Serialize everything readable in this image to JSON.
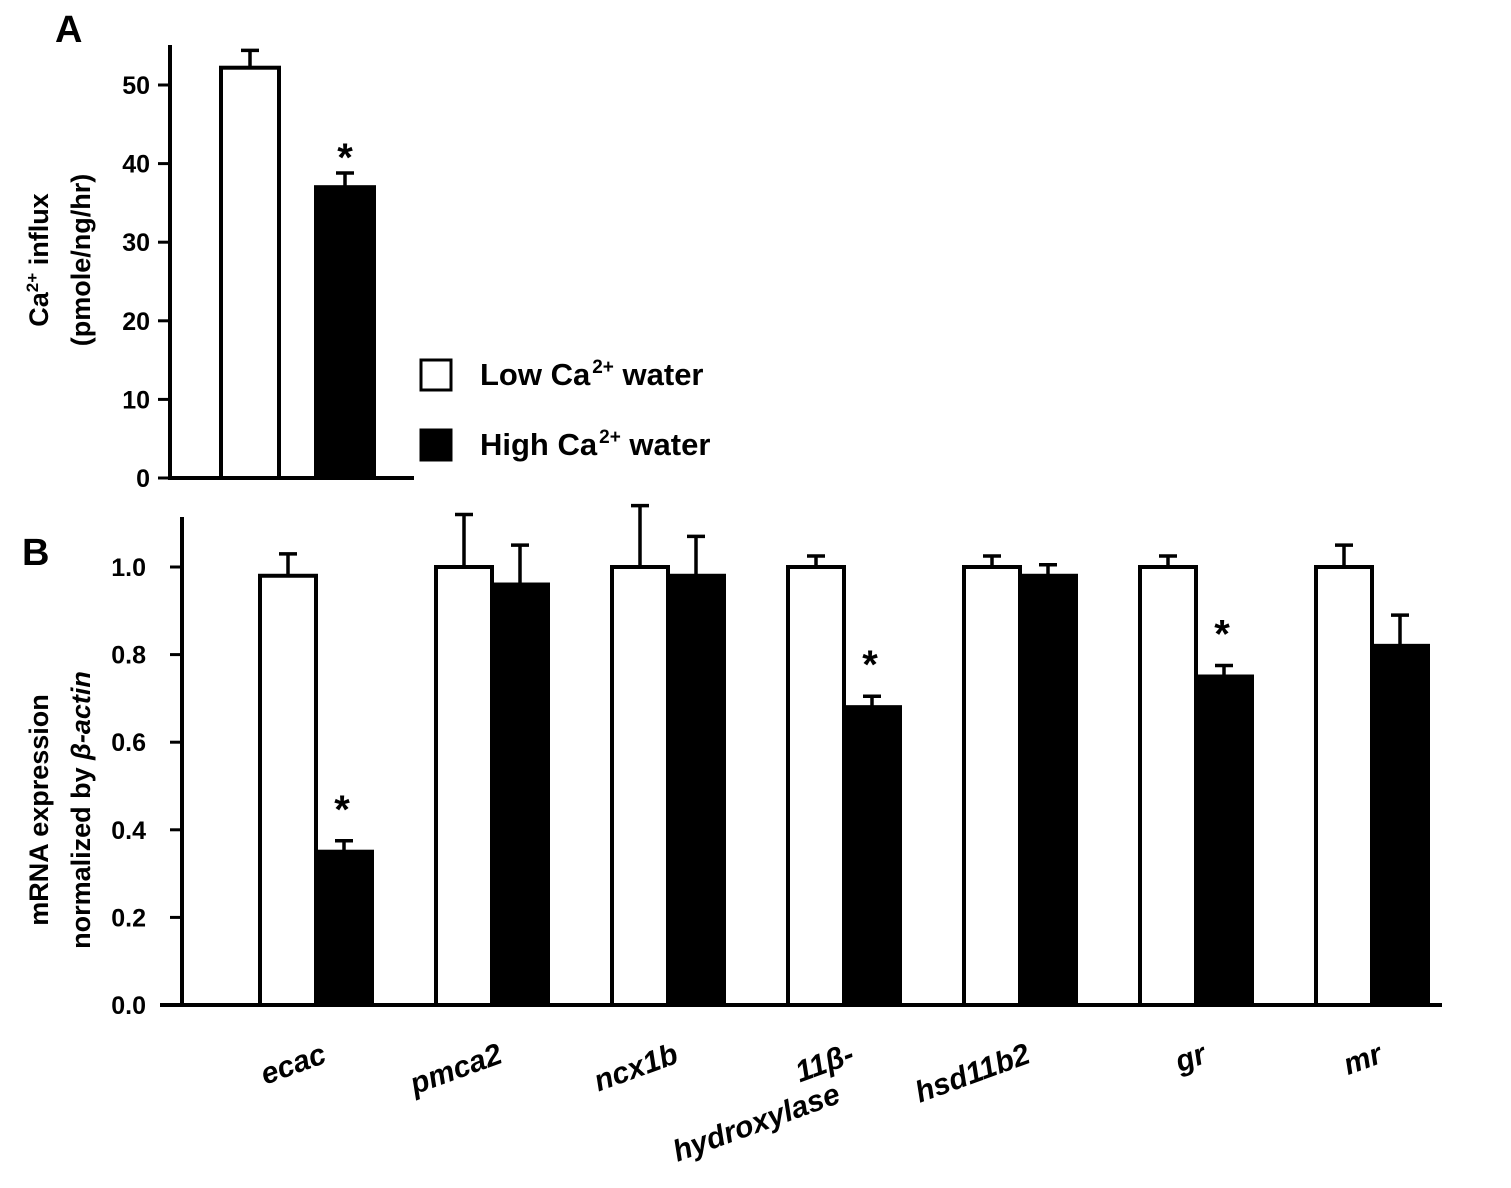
{
  "chart_data": [
    {
      "panel_label": "A",
      "type": "bar",
      "ylabel_line1_main": "Ca",
      "ylabel_line1_sup": "2+",
      "ylabel_line1_rest": " influx",
      "ylabel_line2": "(pmole/ng/hr)",
      "ylim": [
        0,
        55
      ],
      "yticks": [
        0,
        10,
        20,
        30,
        40,
        50
      ],
      "series": [
        {
          "name": "Low Ca2+ water",
          "value": 52.2,
          "error": 2.2,
          "significant": false,
          "color": "#ffffff"
        },
        {
          "name": "High Ca2+ water",
          "value": 37.0,
          "error": 1.8,
          "significant": true,
          "color": "#000000"
        }
      ],
      "significance_marker": "*"
    },
    {
      "panel_label": "B",
      "type": "bar",
      "ylabel_line1": "mRNA expression",
      "ylabel_line2_main": "normalized by ",
      "ylabel_line2_italic": "β-actin",
      "ylim": [
        0,
        1.12
      ],
      "yticks": [
        "0.0",
        "0.2",
        "0.4",
        "0.6",
        "0.8",
        "1.0"
      ],
      "categories": [
        "ecac",
        "pmca2",
        "ncx1b",
        "11β-|hydroxylase",
        "hsd11b2",
        "gr",
        "mr"
      ],
      "series": [
        {
          "name": "Low Ca2+ water",
          "color": "#ffffff",
          "values": [
            0.98,
            1.0,
            1.0,
            1.0,
            1.0,
            1.0,
            1.0
          ],
          "errors": [
            0.05,
            0.12,
            0.14,
            0.025,
            0.025,
            0.025,
            0.05
          ],
          "significant": [
            false,
            false,
            false,
            false,
            false,
            false,
            false
          ]
        },
        {
          "name": "High Ca2+ water",
          "color": "#000000",
          "values": [
            0.35,
            0.96,
            0.98,
            0.68,
            0.98,
            0.75,
            0.82
          ],
          "errors": [
            0.025,
            0.09,
            0.09,
            0.025,
            0.025,
            0.025,
            0.07
          ],
          "significant": [
            true,
            false,
            false,
            true,
            false,
            true,
            false
          ]
        }
      ],
      "significance_marker": "*"
    }
  ],
  "legend": {
    "placement": "right-of-panel-A",
    "items": [
      {
        "main": "Low Ca",
        "sup": "2+",
        "rest": " water",
        "color": "#ffffff"
      },
      {
        "main": "High Ca",
        "sup": "2+",
        "rest": " water",
        "color": "#000000"
      }
    ]
  }
}
